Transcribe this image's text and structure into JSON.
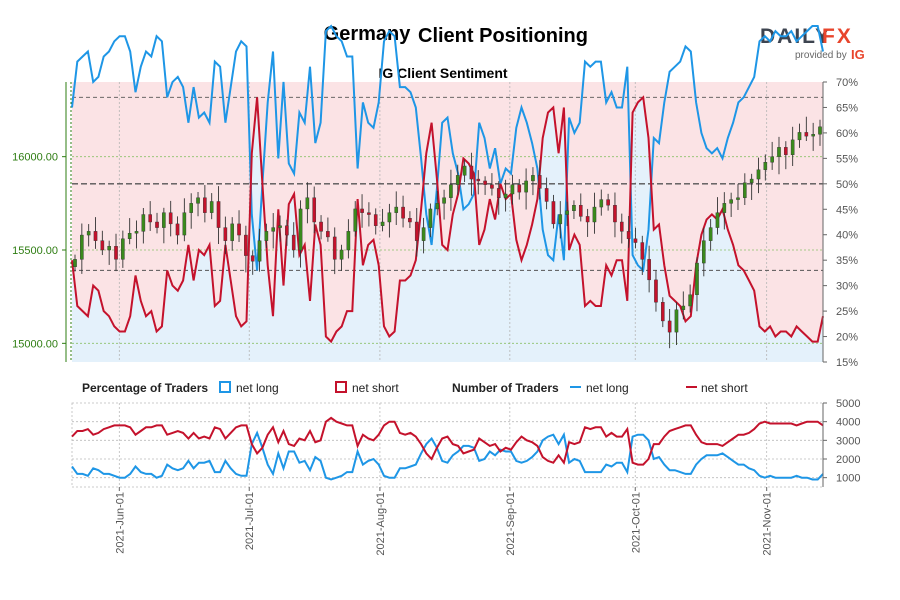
{
  "header": {
    "title_left": "Germany",
    "title_right": "Client Positioning",
    "subtitle": "IG Client Sentiment"
  },
  "logo": {
    "brand_main": "DAILY",
    "brand_fx": "FX",
    "provided_by": "provided by",
    "ig": "IG"
  },
  "legend": {
    "pct_title": "Percentage of Traders",
    "pct_long": "net long",
    "pct_short": "net short",
    "num_title": "Number of Traders",
    "num_long": "net long",
    "num_short": "net short"
  },
  "colors": {
    "long": "#1e96e6",
    "short": "#c4122c",
    "long_fill": "#e4f1fb",
    "short_fill": "#fbe3e5",
    "candle_up": "#3a8a1c",
    "candle_down": "#c4122c",
    "axis_green": "#2e7d12"
  },
  "chart_data": [
    {
      "type": "candlestick+area",
      "title": "IG Client Sentiment",
      "x_ticks": [
        "2021-Jun-01",
        "2021-Jul-01",
        "2021-Aug-01",
        "2021-Sep-01",
        "2021-Oct-01",
        "2021-Nov-01"
      ],
      "left_axis": {
        "ticks": [
          "15000.00",
          "15500.00",
          "16000.00"
        ],
        "ylim": [
          14900,
          16400
        ]
      },
      "right_axis": {
        "ticks": [
          "15%",
          "20%",
          "25%",
          "30%",
          "35%",
          "40%",
          "45%",
          "50%",
          "55%",
          "60%",
          "65%",
          "70%"
        ],
        "ylim": [
          15,
          70
        ]
      },
      "reference_lines": [
        33,
        50,
        67
      ],
      "series": [
        {
          "name": "net short",
          "unit": "%",
          "values": [
            35,
            26,
            25,
            24,
            30,
            29,
            25,
            24,
            22,
            21,
            21,
            24,
            32,
            27,
            24,
            25,
            21,
            22,
            33,
            30,
            29,
            31,
            38,
            31,
            37,
            36,
            38,
            26,
            27,
            38,
            31,
            24,
            22,
            23,
            56,
            67,
            50,
            34,
            24,
            45,
            30,
            46,
            48,
            36,
            38,
            27,
            42,
            38,
            20,
            19,
            21,
            22,
            25,
            25,
            47,
            34,
            38,
            39,
            34,
            22,
            20,
            21,
            31,
            31,
            32,
            35,
            45,
            56,
            62,
            51,
            38,
            37,
            44,
            48,
            55,
            54,
            52,
            38,
            41,
            47,
            43,
            50,
            47,
            48,
            39,
            35,
            38,
            42,
            47,
            59,
            64,
            65,
            56,
            65,
            37,
            40,
            38,
            26,
            27,
            26,
            26,
            34,
            32,
            35,
            35,
            27,
            64,
            66,
            67,
            59,
            41,
            42,
            34,
            28,
            27,
            26,
            23,
            24,
            34,
            40,
            43,
            44,
            43,
            45,
            41,
            38,
            34,
            33,
            31,
            29,
            22,
            21,
            22,
            20,
            21,
            21,
            20,
            22,
            21,
            20,
            19,
            19,
            24
          ]
        },
        {
          "name": "close",
          "unit": "index",
          "values": [
            15450,
            15580,
            15600,
            15550,
            15500,
            15520,
            15450,
            15560,
            15590,
            15600,
            15690,
            15650,
            15620,
            15700,
            15640,
            15580,
            15700,
            15750,
            15780,
            15700,
            15760,
            15620,
            15550,
            15640,
            15580,
            15470,
            15440,
            15550,
            15600,
            15620,
            15630,
            15580,
            15500,
            15720,
            15780,
            15650,
            15600,
            15570,
            15450,
            15500,
            15600,
            15720,
            15700,
            15690,
            15630,
            15650,
            15700,
            15730,
            15670,
            15650,
            15550,
            15620,
            15720,
            15750,
            15780,
            15850,
            15900,
            15950,
            15880,
            15870,
            15850,
            15830,
            15780,
            15800,
            15850,
            15810,
            15870,
            15900,
            15830,
            15760,
            15640,
            15690,
            15710,
            15740,
            15680,
            15650,
            15730,
            15770,
            15740,
            15650,
            15600,
            15560,
            15540,
            15450,
            15340,
            15220,
            15120,
            15060,
            15180,
            15200,
            15260,
            15430,
            15550,
            15620,
            15700,
            15750,
            15770,
            15780,
            15860,
            15880,
            15930,
            15970,
            16000,
            16050,
            16010,
            16090,
            16130,
            16110,
            16120,
            16160
          ]
        },
        {
          "name": "net long",
          "unit": "traders",
          "values": [
            1600,
            1200,
            1200,
            1100,
            1500,
            1400,
            1200,
            1200,
            1100,
            1000,
            1000,
            1200,
            1600,
            1300,
            1200,
            1200,
            1000,
            1100,
            1700,
            1500,
            1400,
            1500,
            1900,
            1500,
            1800,
            1800,
            1900,
            1300,
            1300,
            1900,
            1500,
            1200,
            1100,
            1100,
            2800,
            3400,
            2600,
            1700,
            1200,
            2300,
            1500,
            2400,
            2400,
            1800,
            1900,
            1400,
            2100,
            1900,
            1000,
            900,
            1000,
            1100,
            1300,
            1300,
            2400,
            1700,
            1900,
            2000,
            1700,
            1100,
            1000,
            1000,
            1500,
            1500,
            1600,
            1700,
            2300,
            2800,
            3100,
            2600,
            1900,
            1800,
            2200,
            2400,
            2700,
            2700,
            2600,
            1900,
            2000,
            2400,
            2200,
            2500,
            2400,
            2400,
            1900,
            1800,
            1900,
            2100,
            2400,
            3000,
            3200,
            3300,
            2800,
            3300,
            1800,
            2000,
            1900,
            1300,
            1300,
            1300,
            1300,
            1700,
            1600,
            1800,
            1800,
            1300,
            3200,
            3300,
            3300,
            3000,
            2000,
            2100,
            1700,
            1400,
            1400,
            1300,
            1200,
            1200,
            1700,
            2000,
            2200,
            2200,
            2200,
            2300,
            2100,
            1900,
            1700,
            1700,
            1500,
            1400,
            1100,
            1000,
            1100,
            1000,
            1000,
            1000,
            1000,
            1100,
            1000,
            1000,
            900,
            900,
            1200
          ]
        },
        {
          "name": "net short",
          "unit": "traders",
          "values": [
            3200,
            3500,
            3500,
            3600,
            3300,
            3400,
            3600,
            3700,
            3800,
            3800,
            3800,
            3700,
            3300,
            3500,
            3700,
            3700,
            3800,
            3800,
            3300,
            3400,
            3500,
            3400,
            3100,
            3400,
            3100,
            3200,
            3100,
            3700,
            3600,
            3100,
            3400,
            3700,
            3800,
            3800,
            2800,
            2300,
            2600,
            3300,
            3700,
            2900,
            3500,
            2800,
            2700,
            3100,
            3000,
            3500,
            2900,
            3000,
            4000,
            4200,
            4000,
            3900,
            3800,
            3800,
            2700,
            3300,
            3100,
            3000,
            3300,
            3800,
            4000,
            4000,
            3400,
            3300,
            3400,
            3200,
            2800,
            2300,
            2000,
            2600,
            3100,
            3200,
            2800,
            2700,
            2300,
            2400,
            2500,
            3100,
            2900,
            2700,
            2800,
            2400,
            2600,
            2500,
            2900,
            3200,
            3000,
            2900,
            2700,
            2100,
            1900,
            1800,
            2200,
            1800,
            2900,
            2800,
            2900,
            3700,
            3600,
            3700,
            3700,
            3200,
            3400,
            3200,
            3200,
            3600,
            1800,
            1700,
            1700,
            2000,
            2800,
            2800,
            3200,
            3500,
            3600,
            3700,
            3800,
            3800,
            3300,
            2900,
            2800,
            2800,
            2800,
            2700,
            2900,
            3100,
            3300,
            3300,
            3400,
            3600,
            3900,
            4000,
            3900,
            3900,
            3900,
            3900,
            3900,
            3800,
            3900,
            4000,
            4000,
            4000,
            3800
          ]
        }
      ],
      "bottom_axis": {
        "ticks": [
          "1000",
          "2000",
          "3000",
          "4000",
          "5000"
        ],
        "ylim": [
          500,
          5000
        ]
      }
    }
  ]
}
